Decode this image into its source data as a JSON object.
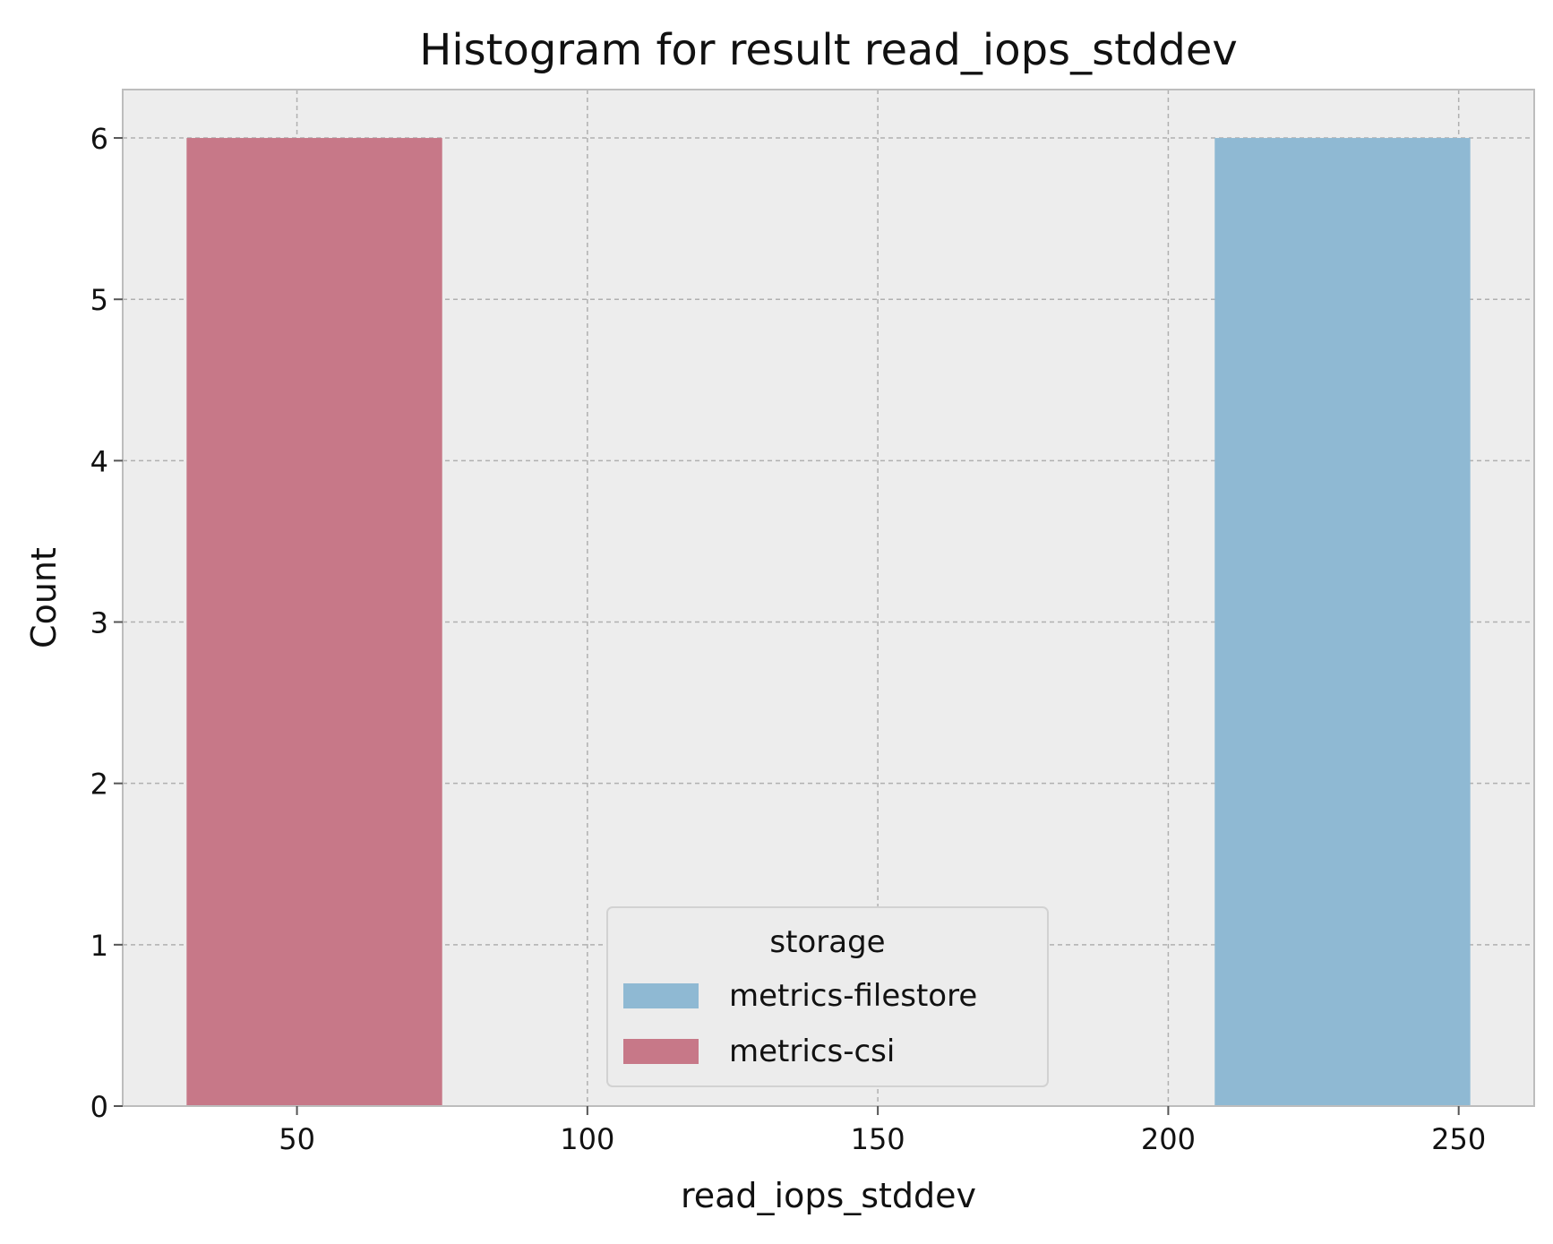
{
  "chart_data": {
    "type": "bar",
    "title": "Histogram for result read_iops_stddev",
    "xlabel": "read_iops_stddev",
    "ylabel": "Count",
    "xlim": [
      20,
      263
    ],
    "ylim": [
      0,
      6.3
    ],
    "xticks": [
      50,
      100,
      150,
      200,
      250
    ],
    "yticks": [
      0,
      1,
      2,
      3,
      4,
      5,
      6
    ],
    "grid": true,
    "legend": {
      "title": "storage",
      "placement": "lower-center"
    },
    "series": [
      {
        "name": "metrics-filestore",
        "color": "#8FB9D3",
        "bins": [
          {
            "x0": 208,
            "x1": 252,
            "count": 6
          }
        ]
      },
      {
        "name": "metrics-csi",
        "color": "#C77888",
        "bins": [
          {
            "x0": 31,
            "x1": 75,
            "count": 6
          }
        ]
      }
    ],
    "colors": {
      "plot_background": "#EDEDED",
      "grid": "#B0B0B0",
      "axes_edge": "#BDBDBD"
    }
  }
}
